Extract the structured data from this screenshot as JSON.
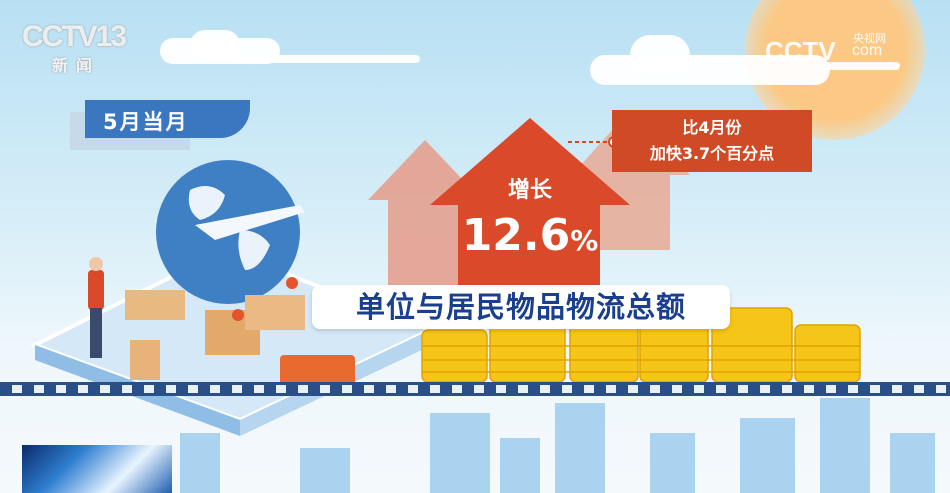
{
  "watermarks": {
    "left_logo": "CCTV13",
    "left_sub": "新闻",
    "right_logo": "CCTV",
    "right_sub1": "央视网",
    "right_sub2": "com"
  },
  "period_label": "5月当月",
  "growth": {
    "label": "增长",
    "value": "12.6",
    "unit": "%"
  },
  "comparison": {
    "line1": "比4月份",
    "line2": "加快3.7个百分点"
  },
  "title": "单位与居民物品物流总额",
  "colors": {
    "arrow": "#d9492a",
    "arrow_light": "#e39a88",
    "label_blue": "#3a77c0",
    "title_text": "#1a3f8e",
    "coins": "#f5c518"
  }
}
